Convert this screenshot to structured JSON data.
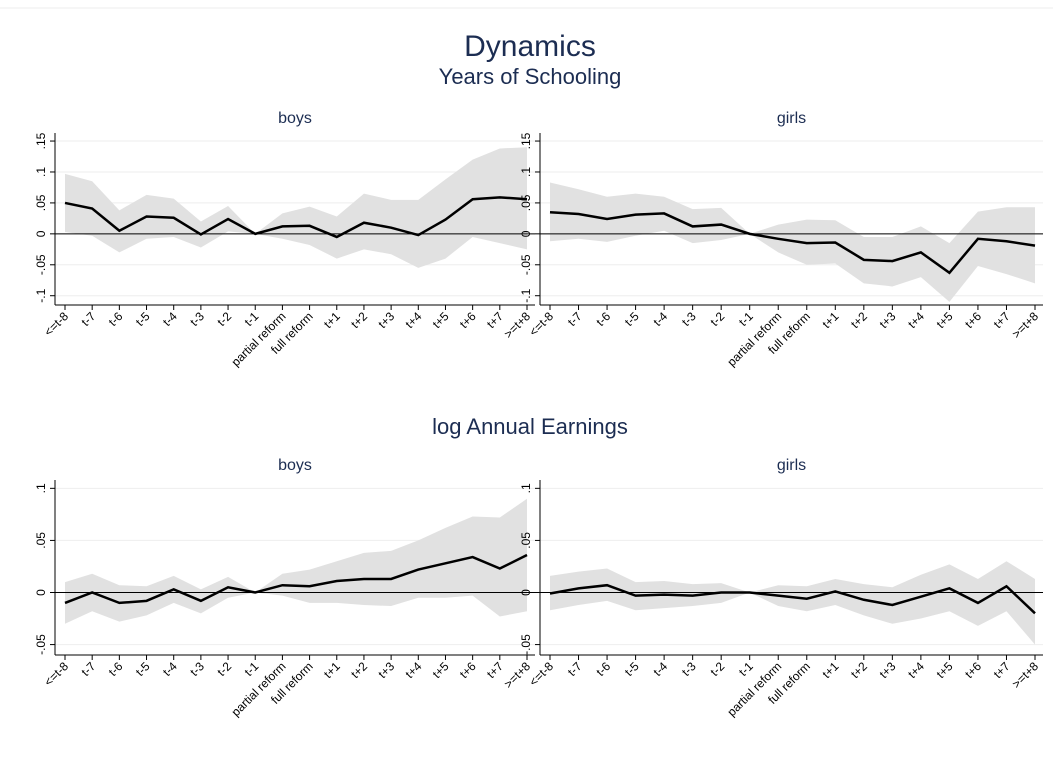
{
  "title": "Dynamics",
  "row_titles": [
    "Years of Schooling",
    "log Annual Earnings"
  ],
  "chart_data": [
    {
      "type": "line",
      "title": "boys",
      "row": 0,
      "col": 0,
      "categories": [
        "<=t-8",
        "t-7",
        "t-6",
        "t-5",
        "t-4",
        "t-3",
        "t-2",
        "t-1",
        "partial reform",
        "full reform",
        "t+1",
        "t+2",
        "t+3",
        "t+4",
        "t+5",
        "t+6",
        "t+7",
        ">=t+8"
      ],
      "values": [
        0.05,
        0.041,
        0.005,
        0.028,
        0.026,
        -0.001,
        0.024,
        0.0,
        0.012,
        0.013,
        -0.005,
        0.018,
        0.01,
        -0.002,
        0.023,
        0.056,
        0.059,
        0.056
      ],
      "ci_lower": [
        0.003,
        -0.003,
        -0.03,
        -0.008,
        -0.005,
        -0.022,
        0.004,
        0.0,
        -0.008,
        -0.018,
        -0.04,
        -0.025,
        -0.033,
        -0.055,
        -0.04,
        -0.005,
        -0.015,
        -0.025
      ],
      "ci_upper": [
        0.097,
        0.085,
        0.038,
        0.063,
        0.057,
        0.02,
        0.045,
        0.0,
        0.033,
        0.044,
        0.028,
        0.065,
        0.055,
        0.055,
        0.088,
        0.12,
        0.138,
        0.14
      ],
      "color": "#000000",
      "band_color": "#e1e1e1",
      "refline": 0,
      "ylim": [
        -0.115,
        0.163
      ],
      "yticks": [
        {
          "value": -0.1,
          "label": "-.1"
        },
        {
          "value": -0.05,
          "label": "-.05"
        },
        0,
        {
          "value": 0.05,
          "label": ".05"
        },
        {
          "value": 0.1,
          "label": ".1"
        },
        {
          "value": 0.15,
          "label": ".15"
        }
      ],
      "grid": true
    },
    {
      "type": "line",
      "title": "girls",
      "row": 0,
      "col": 1,
      "categories": [
        "<=t-8",
        "t-7",
        "t-6",
        "t-5",
        "t-4",
        "t-3",
        "t-2",
        "t-1",
        "partial reform",
        "full reform",
        "t+1",
        "t+2",
        "t+3",
        "t+4",
        "t+5",
        "t+6",
        "t+7",
        ">=t+8"
      ],
      "values": [
        0.035,
        0.032,
        0.024,
        0.031,
        0.033,
        0.012,
        0.015,
        0.0,
        -0.008,
        -0.015,
        -0.014,
        -0.042,
        -0.044,
        -0.03,
        -0.063,
        -0.008,
        -0.012,
        -0.019
      ],
      "ci_lower": [
        -0.012,
        -0.008,
        -0.013,
        -0.003,
        0.005,
        -0.015,
        -0.01,
        0.0,
        -0.03,
        -0.05,
        -0.048,
        -0.08,
        -0.085,
        -0.07,
        -0.11,
        -0.052,
        -0.065,
        -0.08
      ],
      "ci_upper": [
        0.083,
        0.072,
        0.06,
        0.065,
        0.06,
        0.04,
        0.042,
        0.0,
        0.015,
        0.023,
        0.022,
        -0.005,
        -0.005,
        0.012,
        -0.015,
        0.036,
        0.043,
        0.043
      ],
      "color": "#000000",
      "band_color": "#e1e1e1",
      "refline": 0,
      "ylim": [
        -0.115,
        0.163
      ],
      "yticks": [
        {
          "value": -0.1,
          "label": "-.1"
        },
        {
          "value": -0.05,
          "label": "-.05"
        },
        0,
        {
          "value": 0.05,
          "label": ".05"
        },
        {
          "value": 0.1,
          "label": ".1"
        },
        {
          "value": 0.15,
          "label": ".15"
        }
      ],
      "grid": true
    },
    {
      "type": "line",
      "title": "boys",
      "row": 1,
      "col": 0,
      "categories": [
        "<=t-8",
        "t-7",
        "t-6",
        "t-5",
        "t-4",
        "t-3",
        "t-2",
        "t-1",
        "partial reform",
        "full reform",
        "t+1",
        "t+2",
        "t+3",
        "t+4",
        "t+5",
        "t+6",
        "t+7",
        ">=t+8"
      ],
      "values": [
        -0.01,
        0.0,
        -0.01,
        -0.008,
        0.003,
        -0.008,
        0.005,
        0.0,
        0.007,
        0.006,
        0.011,
        0.013,
        0.013,
        0.022,
        0.028,
        0.034,
        0.023,
        0.036
      ],
      "ci_lower": [
        -0.03,
        -0.018,
        -0.028,
        -0.022,
        -0.01,
        -0.02,
        -0.005,
        0.0,
        -0.003,
        -0.01,
        -0.01,
        -0.012,
        -0.013,
        -0.005,
        -0.005,
        -0.003,
        -0.023,
        -0.018
      ],
      "ci_upper": [
        0.01,
        0.018,
        0.007,
        0.006,
        0.016,
        0.003,
        0.015,
        0.0,
        0.018,
        0.022,
        0.03,
        0.038,
        0.04,
        0.05,
        0.062,
        0.073,
        0.072,
        0.09
      ],
      "color": "#000000",
      "band_color": "#e1e1e1",
      "refline": 0,
      "ylim": [
        -0.06,
        0.108
      ],
      "yticks": [
        {
          "value": -0.05,
          "label": "-.05"
        },
        0,
        {
          "value": 0.05,
          "label": ".05"
        },
        {
          "value": 0.1,
          "label": ".1"
        }
      ],
      "grid": true
    },
    {
      "type": "line",
      "title": "girls",
      "row": 1,
      "col": 1,
      "categories": [
        "<=t-8",
        "t-7",
        "t-6",
        "t-5",
        "t-4",
        "t-3",
        "t-2",
        "t-1",
        "partial reform",
        "full reform",
        "t+1",
        "t+2",
        "t+3",
        "t+4",
        "t+5",
        "t+6",
        "t+7",
        ">=t+8"
      ],
      "values": [
        -0.001,
        0.004,
        0.007,
        -0.003,
        -0.002,
        -0.003,
        0.0,
        0.0,
        -0.003,
        -0.006,
        0.001,
        -0.007,
        -0.012,
        -0.004,
        0.004,
        -0.01,
        0.006,
        -0.02
      ],
      "ci_lower": [
        -0.017,
        -0.012,
        -0.008,
        -0.017,
        -0.015,
        -0.013,
        -0.01,
        0.0,
        -0.013,
        -0.018,
        -0.012,
        -0.022,
        -0.03,
        -0.025,
        -0.018,
        -0.032,
        -0.018,
        -0.05
      ],
      "ci_upper": [
        0.016,
        0.02,
        0.023,
        0.01,
        0.011,
        0.008,
        0.009,
        0.0,
        0.007,
        0.006,
        0.013,
        0.008,
        0.005,
        0.017,
        0.027,
        0.013,
        0.03,
        0.013
      ],
      "color": "#000000",
      "band_color": "#e1e1e1",
      "refline": 0,
      "ylim": [
        -0.06,
        0.108
      ],
      "yticks": [
        {
          "value": -0.05,
          "label": "-.05"
        },
        0,
        {
          "value": 0.05,
          "label": ".05"
        },
        {
          "value": 0.1,
          "label": ".1"
        }
      ],
      "grid": true
    }
  ]
}
